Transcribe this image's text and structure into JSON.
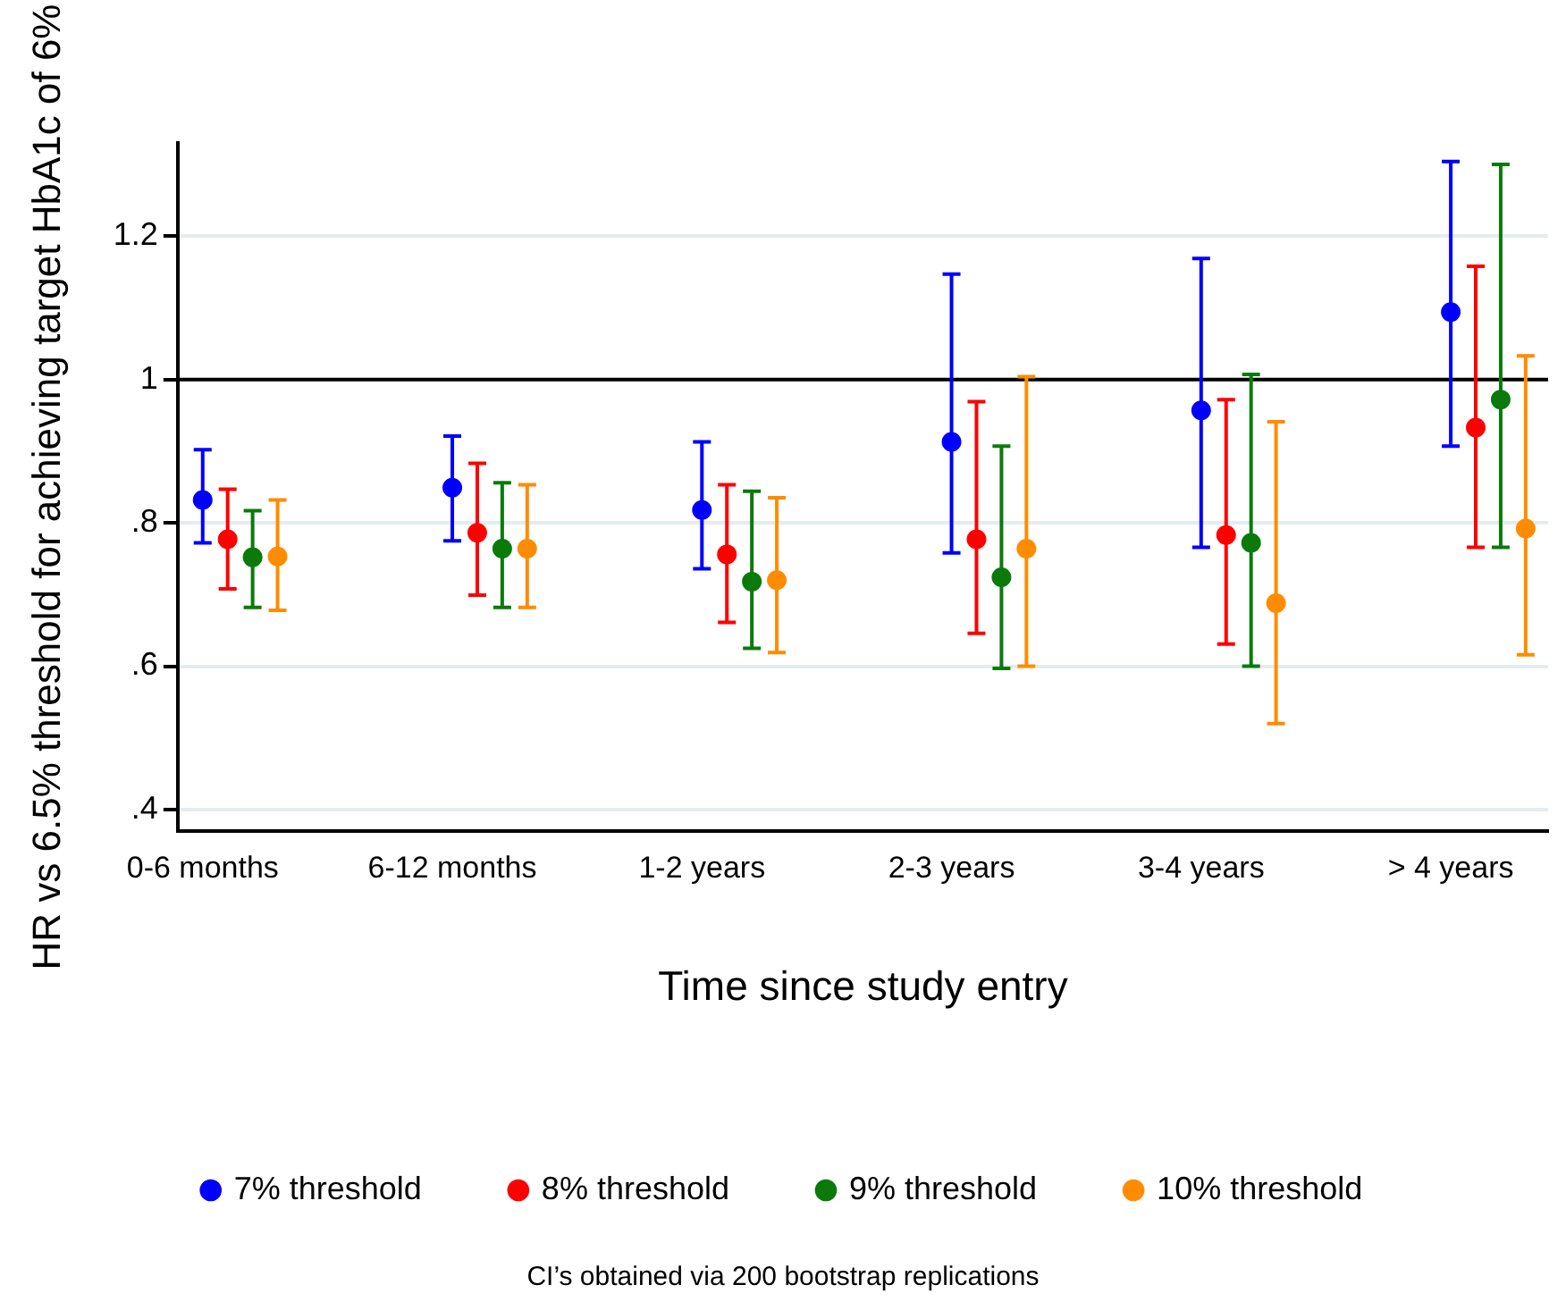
{
  "chart_data": {
    "type": "scatter",
    "xlabel": "Time since study entry",
    "ylabel": "HR vs 6.5% threshold for achieving target HbA1c of 6%",
    "categories": [
      "0-6 months",
      "6-12 months",
      "1-2 years",
      "2-3 years",
      "3-4 years",
      "> 4 years"
    ],
    "series": [
      {
        "name": "7% threshold",
        "color": "#0000ff",
        "values": [
          0.832,
          0.849,
          0.818,
          0.913,
          0.957,
          1.094
        ],
        "errors": [
          [
            0.772,
            0.902
          ],
          [
            0.775,
            0.921
          ],
          [
            0.736,
            0.913
          ],
          [
            0.758,
            1.147
          ],
          [
            0.766,
            1.169
          ],
          [
            0.907,
            1.304
          ]
        ]
      },
      {
        "name": "8% threshold",
        "color": "#ff0000",
        "values": [
          0.777,
          0.786,
          0.756,
          0.777,
          0.783,
          0.933
        ],
        "errors": [
          [
            0.708,
            0.847
          ],
          [
            0.699,
            0.883
          ],
          [
            0.661,
            0.853
          ],
          [
            0.646,
            0.969
          ],
          [
            0.631,
            0.972
          ],
          [
            0.766,
            1.158
          ]
        ]
      },
      {
        "name": "9% threshold",
        "color": "#0b7a0b",
        "values": [
          0.752,
          0.764,
          0.718,
          0.724,
          0.772,
          0.972
        ],
        "errors": [
          [
            0.682,
            0.817
          ],
          [
            0.682,
            0.856
          ],
          [
            0.625,
            0.844
          ],
          [
            0.597,
            0.907
          ],
          [
            0.6,
            1.007
          ],
          [
            0.766,
            1.3
          ]
        ]
      },
      {
        "name": "10% threshold",
        "color": "#ff8c00",
        "values": [
          0.753,
          0.764,
          0.72,
          0.764,
          0.688,
          0.792
        ],
        "errors": [
          [
            0.678,
            0.832
          ],
          [
            0.682,
            0.853
          ],
          [
            0.619,
            0.835
          ],
          [
            0.6,
            1.004
          ],
          [
            0.52,
            0.941
          ],
          [
            0.616,
            1.033
          ]
        ]
      }
    ],
    "ylim": [
      0.37,
      1.33
    ],
    "yticks": [
      {
        "value": 0.4,
        "label": ".4"
      },
      {
        "value": 0.6,
        "label": ".6"
      },
      {
        "value": 0.8,
        "label": ".8"
      },
      {
        "value": 1,
        "label": "1"
      },
      {
        "value": 1.2,
        "label": "1.2"
      }
    ],
    "ref_lines": [
      {
        "axis": "y",
        "value": 1,
        "color": "#000000"
      }
    ],
    "grid": "y",
    "legend": "bottom",
    "marker": "circle",
    "annotations": [
      "CI’s obtained via 200 bootstrap replications"
    ]
  }
}
